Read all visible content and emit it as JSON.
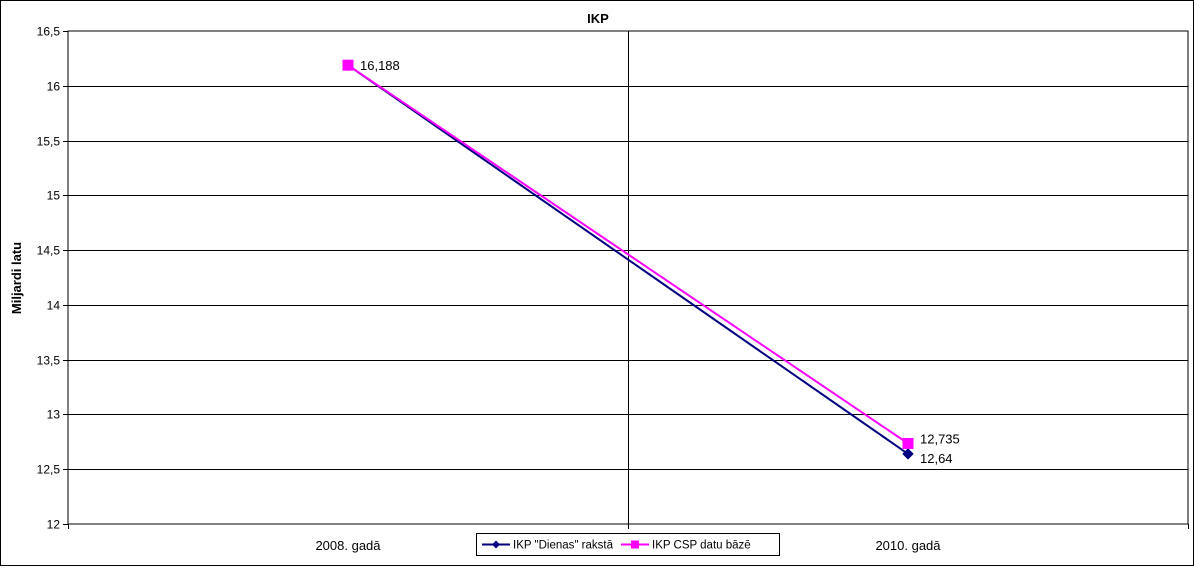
{
  "chart_data": {
    "type": "line",
    "title": "IKP",
    "xlabel": "",
    "ylabel": "Miljardi latu",
    "categories": [
      "2008. gadā",
      "2010. gadā"
    ],
    "ylim": [
      12,
      16.5
    ],
    "yticks": [
      "12",
      "12,5",
      "13",
      "13,5",
      "14",
      "14,5",
      "15",
      "15,5",
      "16",
      "16,5"
    ],
    "grid": true,
    "legend_position": "bottom-center",
    "series": [
      {
        "name": "IKP \"Dienas\" rakstā",
        "values": [
          16.188,
          12.64
        ],
        "labels": [
          "",
          "12,64"
        ],
        "color": "#000080",
        "marker": "diamond"
      },
      {
        "name": "IKP CSP datu bāzē",
        "values": [
          16.188,
          12.735
        ],
        "labels": [
          "16,188",
          "12,735"
        ],
        "color": "#ff00ff",
        "marker": "square"
      }
    ]
  }
}
